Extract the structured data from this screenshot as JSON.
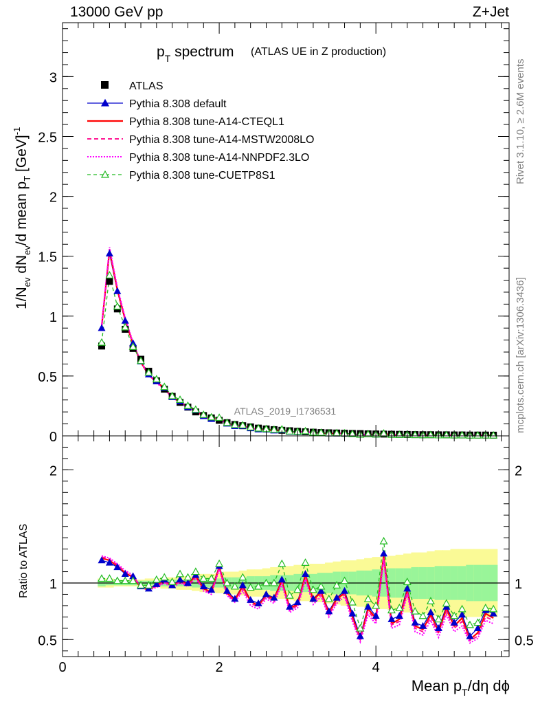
{
  "header": {
    "energy_label": "13000 GeV pp",
    "process_label": "Z+Jet"
  },
  "chart_data": {
    "type": "line",
    "title_main": "p",
    "title_sub": "T",
    "title_rest": " spectrum",
    "title_note": "(ATLAS UE in Z production)",
    "ylabel_main": "1/N",
    "ylabel_sub1": "ev",
    "ylabel_mid": " dN",
    "ylabel_sub2": "ev",
    "ylabel_mid2": "/d mean p",
    "ylabel_sub3": "T",
    "ylabel_end": " [GeV]",
    "ylabel_sup": "-1",
    "ratio_ylabel": "Ratio to ATLAS",
    "xlabel_main": "Mean p",
    "xlabel_sub": "T",
    "xlabel_end": "/dη dϕ",
    "analysis_tag": "ATLAS_2019_I1736531",
    "side_label_top": "Rivet 3.1.10, ≥ 2.6M events",
    "side_label_bottom": "mcplots.cern.ch [arXiv:1306.3436]",
    "x_range": [
      0,
      5.7
    ],
    "y_range": [
      0,
      3.45
    ],
    "ratio_range": [
      0.35,
      2.3
    ],
    "x_ticks": [
      "0",
      "2",
      "4"
    ],
    "y_ticks": [
      "0",
      "0.5",
      "1",
      "1.5",
      "2",
      "2.5",
      "3"
    ],
    "ratio_ticks": [
      "0.5",
      "1",
      "2"
    ],
    "legend": [
      {
        "name": "ATLAS",
        "style": "square",
        "color": "#000000"
      },
      {
        "name": "Pythia 8.308 default",
        "style": "solid-triangle",
        "color": "#0000cc"
      },
      {
        "name": "Pythia 8.308 tune-A14-CTEQL1",
        "style": "solid",
        "color": "#ff0000"
      },
      {
        "name": "Pythia 8.308 tune-A14-MSTW2008LO",
        "style": "dashed",
        "color": "#ff1493"
      },
      {
        "name": "Pythia 8.308 tune-A14-NNPDF2.3LO",
        "style": "dotted",
        "color": "#ff00ff"
      },
      {
        "name": "Pythia 8.308 tune-CUETP8S1",
        "style": "dashed-open-triangle",
        "color": "#22bb22"
      }
    ],
    "x": [
      0.5,
      0.6,
      0.7,
      0.8,
      0.9,
      1.0,
      1.1,
      1.2,
      1.3,
      1.4,
      1.5,
      1.6,
      1.7,
      1.8,
      1.9,
      2.0,
      2.1,
      2.2,
      2.3,
      2.4,
      2.5,
      2.6,
      2.7,
      2.8,
      2.9,
      3.0,
      3.1,
      3.2,
      3.3,
      3.4,
      3.5,
      3.6,
      3.7,
      3.8,
      3.9,
      4.0,
      4.1,
      4.2,
      4.3,
      4.4,
      4.5,
      4.6,
      4.7,
      4.8,
      4.9,
      5.0,
      5.1,
      5.2,
      5.3,
      5.4,
      5.5
    ],
    "atlas": [
      0.75,
      1.29,
      1.06,
      0.89,
      0.73,
      0.64,
      0.54,
      0.46,
      0.39,
      0.33,
      0.28,
      0.24,
      0.2,
      0.17,
      0.15,
      0.13,
      0.11,
      0.095,
      0.085,
      0.075,
      0.065,
      0.058,
      0.052,
      0.047,
      0.043,
      0.038,
      0.034,
      0.031,
      0.028,
      0.026,
      0.024,
      0.022,
      0.02,
      0.019,
      0.017,
      0.016,
      0.015,
      0.014,
      0.013,
      0.012,
      0.011,
      0.01,
      0.01,
      0.009,
      0.009,
      0.008,
      0.008,
      0.007,
      0.007,
      0.007,
      0.006
    ],
    "ratio_default": [
      1.2,
      1.18,
      1.14,
      1.08,
      1.06,
      0.97,
      0.95,
      0.99,
      1.03,
      0.98,
      1.03,
      1.0,
      1.07,
      0.97,
      0.94,
      1.15,
      0.93,
      0.86,
      0.98,
      0.85,
      0.82,
      0.9,
      0.87,
      1.03,
      0.79,
      0.83,
      1.08,
      0.86,
      0.93,
      0.75,
      0.87,
      0.93,
      0.73,
      0.53,
      0.79,
      0.71,
      1.26,
      0.68,
      0.71,
      0.95,
      0.65,
      0.62,
      0.74,
      0.6,
      0.79,
      0.65,
      0.72,
      0.53,
      0.6,
      0.76,
      0.73
    ],
    "ratio_cteql1": [
      1.22,
      1.2,
      1.15,
      1.09,
      1.05,
      0.96,
      0.94,
      0.98,
      1.02,
      0.97,
      1.02,
      0.99,
      1.06,
      0.95,
      0.92,
      1.14,
      0.91,
      0.85,
      0.97,
      0.84,
      0.8,
      0.89,
      0.86,
      1.02,
      0.78,
      0.81,
      1.07,
      0.85,
      0.92,
      0.73,
      0.86,
      0.91,
      0.7,
      0.51,
      0.77,
      0.69,
      1.24,
      0.64,
      0.68,
      0.93,
      0.62,
      0.59,
      0.72,
      0.57,
      0.77,
      0.62,
      0.69,
      0.5,
      0.56,
      0.73,
      0.69
    ],
    "ratio_mstw": [
      1.23,
      1.21,
      1.16,
      1.1,
      1.06,
      0.97,
      0.95,
      0.97,
      1.01,
      0.97,
      1.01,
      0.98,
      1.05,
      0.94,
      0.91,
      1.13,
      0.9,
      0.84,
      0.95,
      0.82,
      0.79,
      0.88,
      0.84,
      1.01,
      0.76,
      0.8,
      1.05,
      0.83,
      0.9,
      0.72,
      0.84,
      0.9,
      0.68,
      0.5,
      0.75,
      0.67,
      1.22,
      0.63,
      0.66,
      0.92,
      0.6,
      0.57,
      0.7,
      0.55,
      0.75,
      0.6,
      0.66,
      0.49,
      0.53,
      0.7,
      0.67
    ],
    "ratio_nnpdf": [
      1.24,
      1.22,
      1.17,
      1.11,
      1.07,
      0.96,
      0.94,
      0.96,
      1.0,
      0.96,
      1.0,
      0.97,
      1.04,
      0.93,
      0.9,
      1.12,
      0.89,
      0.83,
      0.93,
      0.8,
      0.77,
      0.86,
      0.82,
      0.99,
      0.74,
      0.78,
      1.03,
      0.81,
      0.88,
      0.7,
      0.82,
      0.88,
      0.66,
      0.48,
      0.72,
      0.64,
      1.2,
      0.6,
      0.63,
      0.9,
      0.57,
      0.54,
      0.67,
      0.52,
      0.72,
      0.57,
      0.62,
      0.47,
      0.51,
      0.67,
      0.64
    ],
    "ratio_cuetp8s1": [
      1.04,
      1.04,
      1.02,
      1.02,
      1.02,
      0.98,
      0.98,
      1.03,
      1.05,
      1.01,
      1.08,
      1.05,
      1.1,
      1.04,
      1.04,
      1.17,
      1.0,
      0.97,
      1.05,
      0.96,
      0.97,
      1.0,
      1.0,
      1.17,
      0.89,
      0.94,
      1.18,
      0.94,
      0.97,
      0.86,
      0.98,
      1.02,
      0.83,
      0.6,
      0.86,
      0.8,
      1.37,
      0.76,
      0.78,
      1.01,
      0.75,
      0.71,
      0.84,
      0.68,
      0.82,
      0.71,
      0.77,
      0.63,
      0.65,
      0.78,
      0.77
    ],
    "band_inner": [
      0.03,
      0.02,
      0.02,
      0.02,
      0.02,
      0.02,
      0.02,
      0.02,
      0.03,
      0.03,
      0.03,
      0.03,
      0.04,
      0.04,
      0.04,
      0.04,
      0.05,
      0.05,
      0.05,
      0.06,
      0.06,
      0.06,
      0.07,
      0.07,
      0.07,
      0.08,
      0.08,
      0.08,
      0.09,
      0.09,
      0.1,
      0.1,
      0.1,
      0.11,
      0.11,
      0.12,
      0.12,
      0.13,
      0.13,
      0.13,
      0.14,
      0.14,
      0.14,
      0.15,
      0.15,
      0.15,
      0.15,
      0.16,
      0.16,
      0.16,
      0.16
    ],
    "band_outer": [
      0.04,
      0.04,
      0.03,
      0.03,
      0.03,
      0.03,
      0.04,
      0.04,
      0.05,
      0.05,
      0.06,
      0.06,
      0.07,
      0.08,
      0.08,
      0.09,
      0.1,
      0.1,
      0.11,
      0.12,
      0.12,
      0.13,
      0.14,
      0.14,
      0.15,
      0.16,
      0.16,
      0.17,
      0.17,
      0.18,
      0.19,
      0.2,
      0.2,
      0.21,
      0.22,
      0.23,
      0.23,
      0.24,
      0.25,
      0.26,
      0.27,
      0.27,
      0.28,
      0.29,
      0.29,
      0.3,
      0.3,
      0.3,
      0.3,
      0.3,
      0.3
    ],
    "colors": {
      "band_inner": "#99f599",
      "band_outer": "#fafa96",
      "default": "#0000cc",
      "cteql1": "#ff0000",
      "mstw": "#ff1493",
      "nnpdf": "#ff00ff",
      "cuetp8s1": "#22bb22"
    }
  }
}
